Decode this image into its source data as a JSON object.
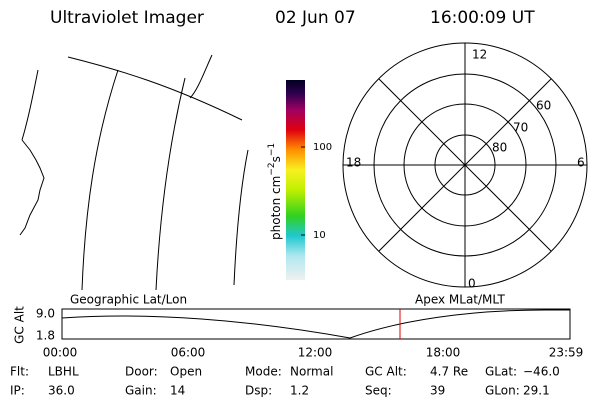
{
  "header": {
    "title": "Ultraviolet Imager",
    "date": "02 Jun 07",
    "time": "16:00:09 UT"
  },
  "colorbar": {
    "label_parts": [
      "photon cm",
      "−2",
      "s",
      "−1"
    ],
    "ticks": [
      "100",
      "10"
    ]
  },
  "polar": {
    "mlt_labels": [
      "12",
      "18",
      "6",
      "0"
    ],
    "lat_labels": [
      "60",
      "70",
      "80"
    ]
  },
  "timeline": {
    "left_title": "Geographic Lat/Lon",
    "right_title": "Apex MLat/MLT",
    "y_label": "GC Alt",
    "y_ticks": [
      "9.0",
      "1.8"
    ],
    "x_ticks": [
      "00:00",
      "06:00",
      "12:00",
      "18:00",
      "23:59"
    ]
  },
  "footer": {
    "rows": [
      [
        [
          "Flt:",
          "LBHL"
        ],
        [
          "Door:",
          "Open"
        ],
        [
          "Mode:",
          "Normal"
        ],
        [
          "GC Alt:",
          "4.7 Re"
        ],
        [
          "GLat:",
          "−46.0"
        ]
      ],
      [
        [
          "IP:",
          "36.0"
        ],
        [
          "Gain:",
          "14"
        ],
        [
          "Dsp:",
          "1.2"
        ],
        [
          "Seq:",
          "39"
        ],
        [
          "GLon:",
          "29.1"
        ]
      ]
    ]
  }
}
